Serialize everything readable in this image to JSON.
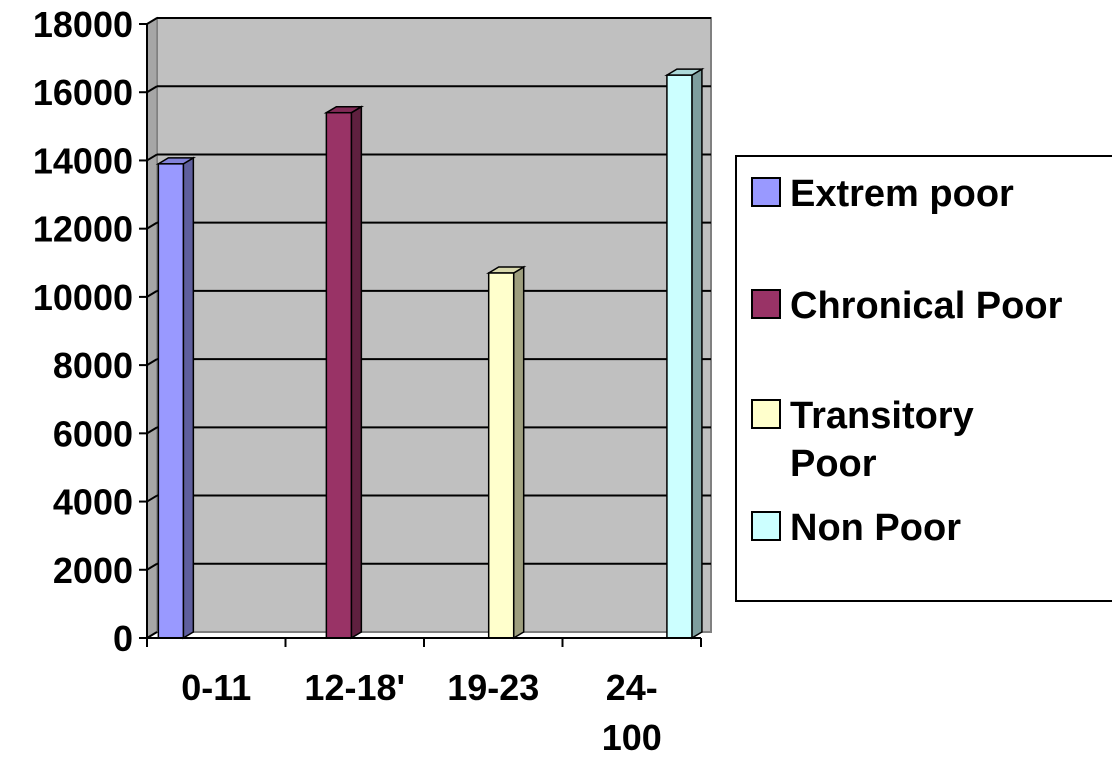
{
  "chart_data": {
    "type": "bar",
    "categories": [
      "0-11",
      "12-18'",
      "19-23",
      "24-100"
    ],
    "category_label_lines": [
      [
        "0-11"
      ],
      [
        "12-18'"
      ],
      [
        "19-23"
      ],
      [
        "24-",
        "100"
      ]
    ],
    "series": [
      {
        "name": "Extrem poor",
        "name_lines": [
          "Extrem poor"
        ],
        "values": [
          13900,
          null,
          null,
          null
        ],
        "color": "#9999ff"
      },
      {
        "name": "Chronical Poor",
        "name_lines": [
          "Chronical Poor"
        ],
        "values": [
          null,
          15400,
          null,
          null
        ],
        "color": "#993366"
      },
      {
        "name": "Transitory Poor",
        "name_lines": [
          "Transitory",
          "Poor"
        ],
        "values": [
          null,
          null,
          10700,
          null
        ],
        "color": "#ffffcc"
      },
      {
        "name": "Non Poor",
        "name_lines": [
          "Non Poor"
        ],
        "values": [
          null,
          null,
          null,
          16500
        ],
        "color": "#ccffff"
      }
    ],
    "ylim": [
      0,
      18000
    ],
    "yticks": [
      "0",
      "2000",
      "4000",
      "6000",
      "8000",
      "10000",
      "12000",
      "14000",
      "16000",
      "18000"
    ],
    "grid": true,
    "plot_background": "#c0c0c0",
    "legend_position": "right",
    "title": "",
    "xlabel": "",
    "ylabel": ""
  }
}
